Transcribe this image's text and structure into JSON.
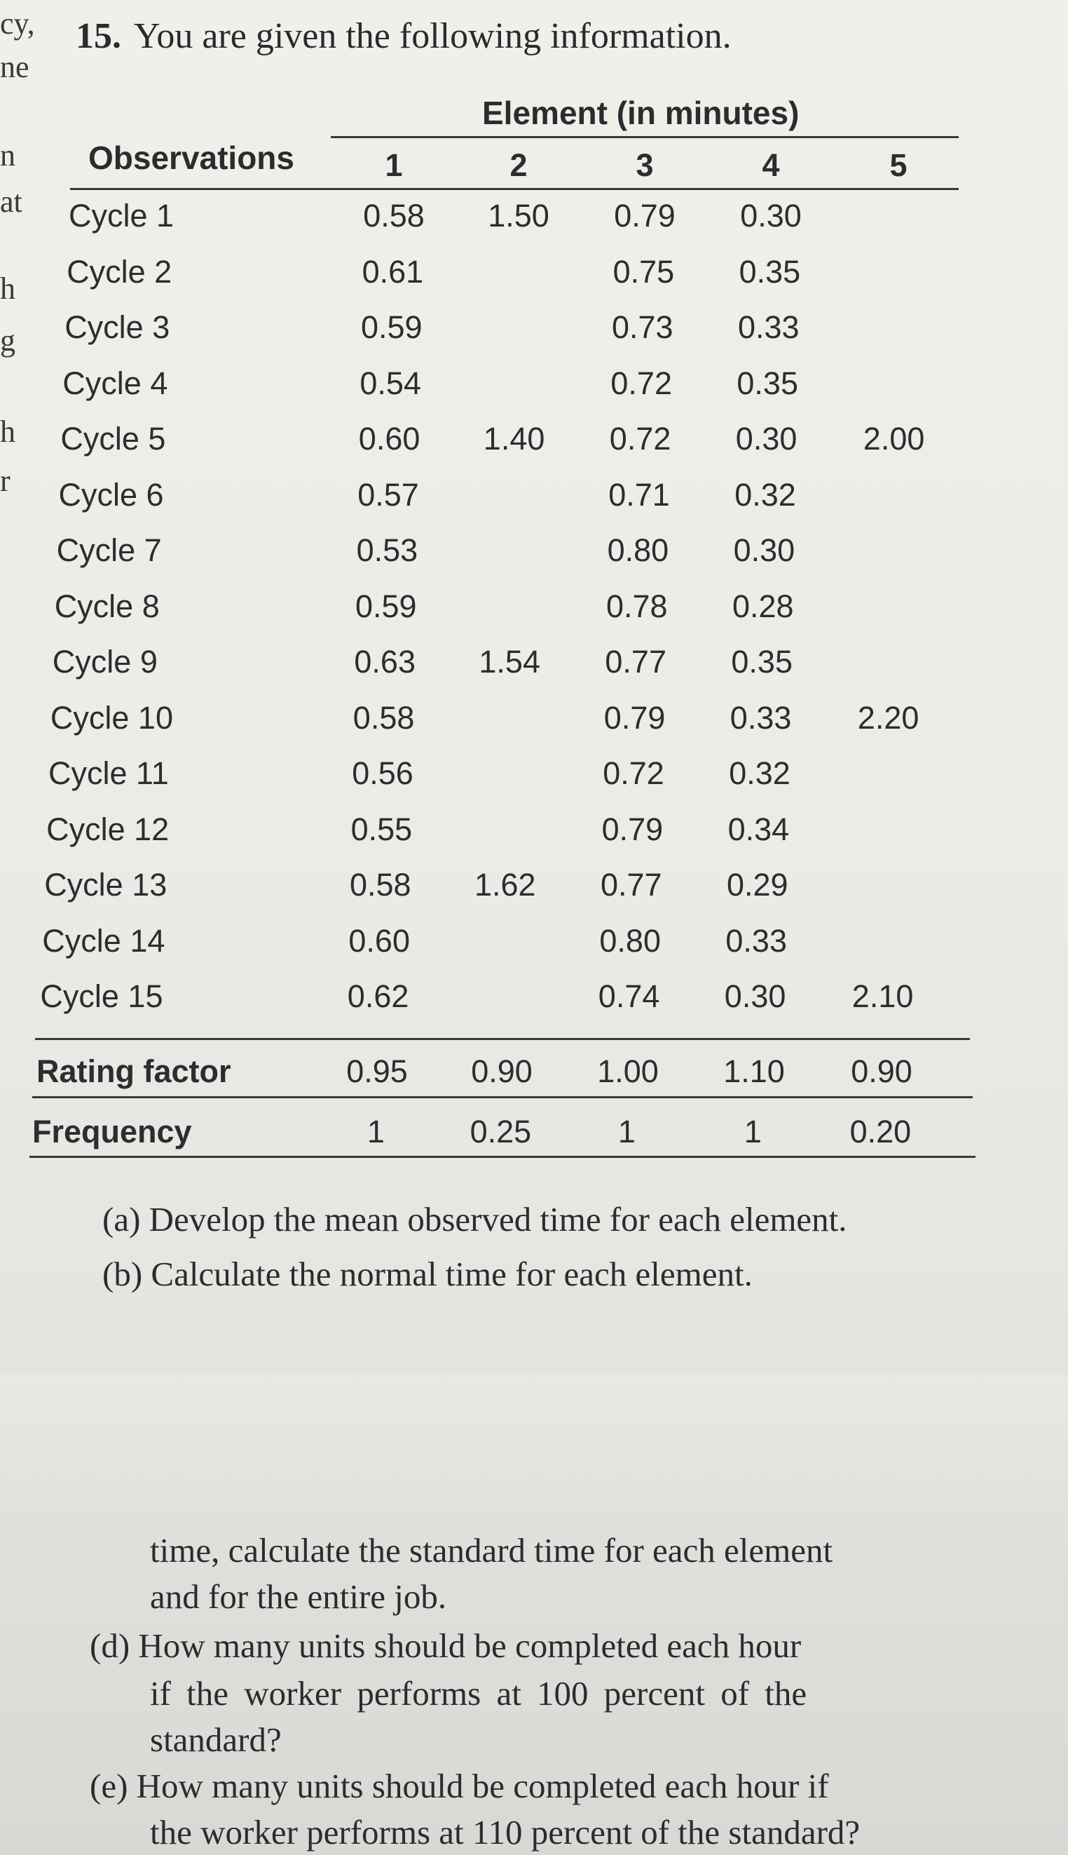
{
  "margin_fragments": [
    "cy,",
    "ne",
    "n",
    "at",
    "h",
    "g",
    "h",
    "r"
  ],
  "problem": {
    "number": "15.",
    "text": "You are given the following information."
  },
  "table": {
    "group_header": "Element (in minutes)",
    "observations_header": "Observations",
    "element_headers": [
      "1",
      "2",
      "3",
      "4",
      "5"
    ],
    "rows": [
      {
        "label": "Cycle 1",
        "values": [
          "0.58",
          "1.50",
          "0.79",
          "0.30",
          ""
        ]
      },
      {
        "label": "Cycle 2",
        "values": [
          "0.61",
          "",
          "0.75",
          "0.35",
          ""
        ]
      },
      {
        "label": "Cycle 3",
        "values": [
          "0.59",
          "",
          "0.73",
          "0.33",
          ""
        ]
      },
      {
        "label": "Cycle 4",
        "values": [
          "0.54",
          "",
          "0.72",
          "0.35",
          ""
        ]
      },
      {
        "label": "Cycle 5",
        "values": [
          "0.60",
          "1.40",
          "0.72",
          "0.30",
          "2.00"
        ]
      },
      {
        "label": "Cycle 6",
        "values": [
          "0.57",
          "",
          "0.71",
          "0.32",
          ""
        ]
      },
      {
        "label": "Cycle 7",
        "values": [
          "0.53",
          "",
          "0.80",
          "0.30",
          ""
        ]
      },
      {
        "label": "Cycle 8",
        "values": [
          "0.59",
          "",
          "0.78",
          "0.28",
          ""
        ]
      },
      {
        "label": "Cycle 9",
        "values": [
          "0.63",
          "1.54",
          "0.77",
          "0.35",
          ""
        ]
      },
      {
        "label": "Cycle 10",
        "values": [
          "0.58",
          "",
          "0.79",
          "0.33",
          "2.20"
        ]
      },
      {
        "label": "Cycle 11",
        "values": [
          "0.56",
          "",
          "0.72",
          "0.32",
          ""
        ]
      },
      {
        "label": "Cycle 12",
        "values": [
          "0.55",
          "",
          "0.79",
          "0.34",
          ""
        ]
      },
      {
        "label": "Cycle 13",
        "values": [
          "0.58",
          "1.62",
          "0.77",
          "0.29",
          ""
        ]
      },
      {
        "label": "Cycle 14",
        "values": [
          "0.60",
          "",
          "0.80",
          "0.33",
          ""
        ]
      },
      {
        "label": "Cycle 15",
        "values": [
          "0.62",
          "",
          "0.74",
          "0.30",
          "2.10"
        ]
      }
    ],
    "rating_factor": {
      "label": "Rating factor",
      "values": [
        "0.95",
        "0.90",
        "1.00",
        "1.10",
        "0.90"
      ]
    },
    "frequency": {
      "label": "Frequency",
      "values": [
        "1",
        "0.25",
        "1",
        "1",
        "0.20"
      ]
    }
  },
  "questions": {
    "a": "(a) Develop the mean observed time for each element.",
    "b": "(b) Calculate the normal time for each element.",
    "c_line1": "time, calculate the standard time for each element",
    "c_line2": "and for the entire job.",
    "d_line1": "(d) How many units should be completed each hour",
    "d_line2": "if the worker performs at 100 percent of the",
    "d_line3": "standard?",
    "e_line1": "(e) How many units should be completed each hour if",
    "e_line2": "the worker performs at 110 percent of the standard?"
  }
}
